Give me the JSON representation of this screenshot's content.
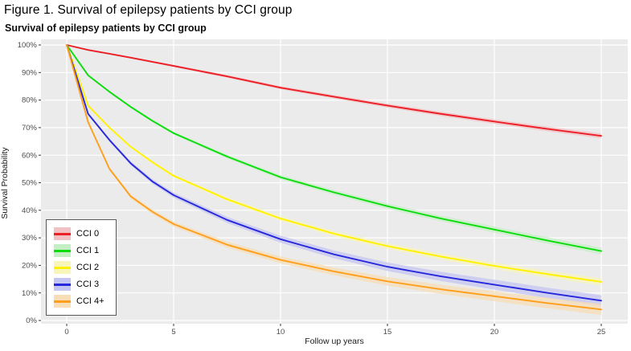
{
  "page": {
    "caption": "Figure 1. Survival of epilepsy patients by CCI group"
  },
  "chart_data": {
    "type": "line",
    "title": "Survival of epilepsy patients by CCI group",
    "xlabel": "Follow up years",
    "ylabel": "Survival Probability",
    "xlim": [
      0,
      25
    ],
    "ylim": [
      0,
      100
    ],
    "grid": "white major gridlines on light gray panel",
    "legend_position": "inside bottom-left",
    "panel_bg": "#EBEBEB",
    "gridline_color": "#FFFFFF",
    "tick_label_color": "#4D4D4D",
    "x_ticks": [
      "0",
      "5",
      "10",
      "15",
      "20",
      "25"
    ],
    "y_ticks": [
      "100%",
      "90%",
      "80%",
      "70%",
      "60%",
      "50%",
      "40%",
      "30%",
      "20%",
      "10%",
      "0%"
    ],
    "x": [
      0,
      1,
      2,
      3,
      4,
      5,
      7.5,
      10,
      12.5,
      15,
      17.5,
      20,
      22.5,
      25
    ],
    "series": [
      {
        "name": "CCI 0",
        "color": "#EC1F26",
        "band_color": "#F2BFC2",
        "band_max": 0.9,
        "values": [
          100,
          98.2,
          96.8,
          95.4,
          93.9,
          92.4,
          88.6,
          84.5,
          81.2,
          78,
          75,
          72.2,
          69.5,
          67
        ]
      },
      {
        "name": "CCI 1",
        "color": "#0BDC0B",
        "band_color": "#C4EFC4",
        "band_max": 1.2,
        "values": [
          100,
          89,
          83,
          77.5,
          72.5,
          68,
          59.5,
          52,
          46.5,
          41.5,
          37,
          33,
          29,
          25.2
        ]
      },
      {
        "name": "CCI 2",
        "color": "#FFF100",
        "band_color": "#F8F5B8",
        "band_max": 1.3,
        "values": [
          100,
          78,
          70,
          63,
          57.5,
          52.5,
          44,
          37,
          31.5,
          27,
          23.2,
          19.8,
          16.8,
          14
        ]
      },
      {
        "name": "CCI 3",
        "color": "#2727DB",
        "band_color": "#C4C4F2",
        "band_max": 2.0,
        "values": [
          100,
          75,
          65.5,
          57,
          50.5,
          45.5,
          36.5,
          29.5,
          24,
          19.5,
          16,
          13,
          10,
          7.2
        ]
      },
      {
        "name": "CCI 4+",
        "color": "#FF9E1B",
        "band_color": "#F7DEB6",
        "band_max": 2.0,
        "values": [
          100,
          72,
          55,
          45,
          39.5,
          35,
          27.5,
          22,
          17.8,
          14.2,
          11.3,
          8.8,
          6.3,
          4
        ]
      }
    ]
  }
}
